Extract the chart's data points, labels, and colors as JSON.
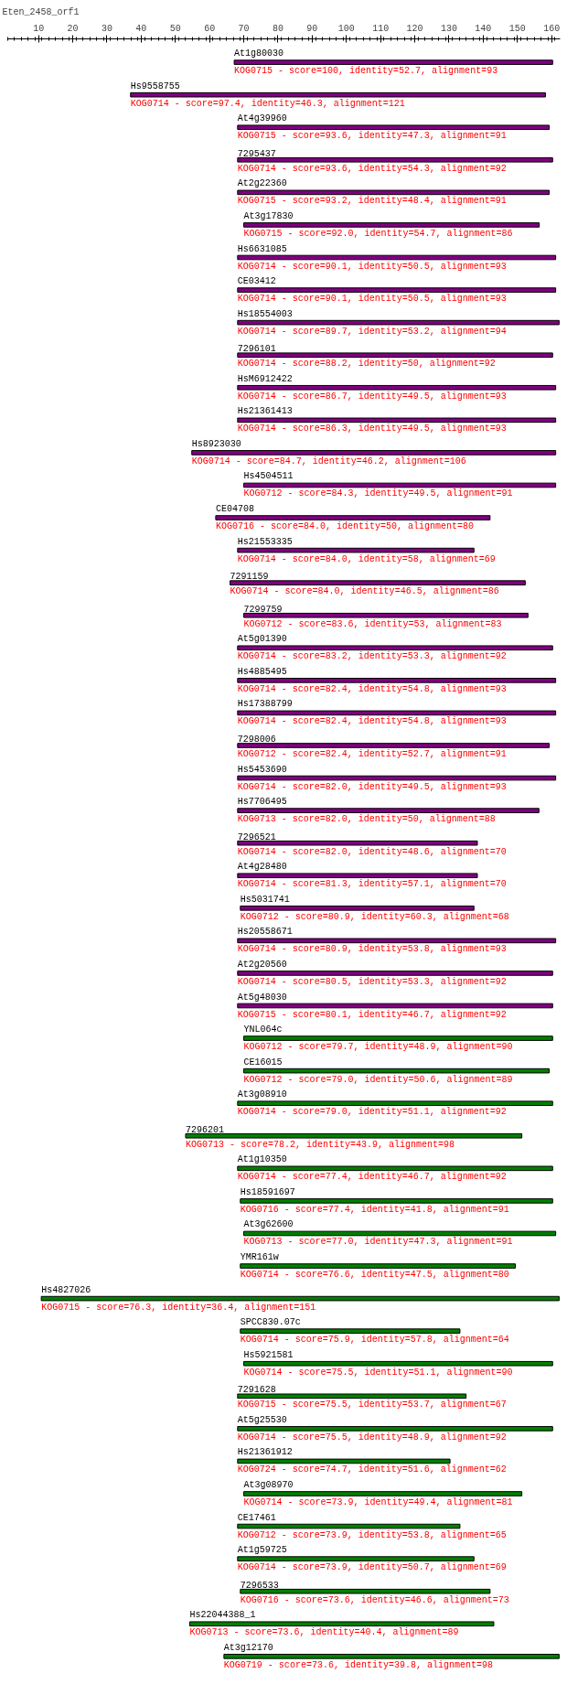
{
  "chart_data": {
    "type": "bar",
    "orientation": "horizontal",
    "title": "Eten_2458_orf1",
    "xlim": [
      1,
      162.5
    ],
    "xticks": [
      10,
      20,
      30,
      40,
      50,
      60,
      70,
      80,
      90,
      100,
      110,
      120,
      130,
      140,
      150,
      160
    ],
    "grid": false,
    "tick_labels": "x",
    "categories": [
      "At1g80030",
      "Hs9558755",
      "At4g39960",
      "7295437",
      "At2g22360",
      "At3g17830",
      "Hs6631085",
      "CE03412",
      "Hs18554003",
      "7296101",
      "HsM6912422",
      "Hs21361413",
      "Hs8923030",
      "Hs4504511",
      "CE04708",
      "Hs21553335",
      "7291159",
      "7299759",
      "At5g01390",
      "Hs4885495",
      "Hs17388799",
      "7298006",
      "Hs5453690",
      "Hs7706495",
      "7296521",
      "At4g28480",
      "Hs5031741",
      "Hs20558671",
      "At2g20560",
      "At5g48030",
      "YNL064c",
      "CE16015",
      "At3g08910",
      "7296201",
      "At1g10350",
      "Hs18591697",
      "At3g62600",
      "YMR161w",
      "Hs4827026",
      "SPCC830.07c",
      "Hs5921581",
      "7291628",
      "At5g25530",
      "Hs21361912",
      "At3g08970",
      "CE17461",
      "At1g59725",
      "7296533",
      "Hs22044388_1",
      "At3g12170"
    ],
    "base": [
      67.2,
      36.9,
      68.2,
      68.2,
      68.2,
      70.0,
      68.2,
      68.2,
      68.2,
      68.2,
      68.2,
      68.2,
      54.8,
      70.0,
      61.8,
      68.2,
      66.0,
      70.0,
      68.2,
      68.2,
      68.2,
      68.2,
      68.2,
      68.2,
      68.2,
      68.2,
      69.0,
      68.2,
      68.2,
      68.2,
      70.0,
      70.0,
      68.2,
      53.0,
      68.2,
      69.0,
      70.0,
      69.0,
      10.8,
      69.0,
      70.0,
      68.2,
      68.2,
      68.2,
      70.0,
      68.2,
      68.2,
      69.0,
      54.2,
      64.2
    ],
    "values": [
      93.1,
      121.3,
      91.1,
      92.1,
      91.1,
      86.4,
      93.0,
      93.0,
      94.0,
      92.1,
      93.0,
      93.0,
      106.4,
      91.2,
      80.2,
      69.1,
      86.3,
      83.1,
      92.1,
      93.0,
      93.0,
      91.1,
      93.0,
      88.1,
      70.1,
      70.1,
      68.3,
      93.0,
      92.1,
      92.1,
      90.3,
      89.3,
      92.1,
      98.3,
      92.1,
      91.3,
      91.2,
      80.4,
      151.4,
      64.2,
      90.3,
      66.8,
      92.1,
      62.1,
      81.3,
      65.0,
      69.1,
      73.0,
      88.9,
      98.0
    ],
    "colors": [
      "#800080",
      "#800080",
      "#800080",
      "#800080",
      "#800080",
      "#800080",
      "#800080",
      "#800080",
      "#800080",
      "#800080",
      "#800080",
      "#800080",
      "#800080",
      "#800080",
      "#800080",
      "#800080",
      "#800080",
      "#800080",
      "#800080",
      "#800080",
      "#800080",
      "#800080",
      "#800080",
      "#800080",
      "#800080",
      "#800080",
      "#800080",
      "#800080",
      "#800080",
      "#800080",
      "#008000",
      "#008000",
      "#008000",
      "#008000",
      "#008000",
      "#008000",
      "#008000",
      "#008000",
      "#008000",
      "#008000",
      "#008000",
      "#008000",
      "#008000",
      "#008000",
      "#008000",
      "#008000",
      "#008000",
      "#008000",
      "#008000",
      "#008000"
    ],
    "value_labels": [
      "KOG0715 - score=100, identity=52.7, alignment=93",
      "KOG0714 - score=97.4, identity=46.3, alignment=121",
      "KOG0715 - score=93.6, identity=47.3, alignment=91",
      "KOG0714 - score=93.6, identity=54.3, alignment=92",
      "KOG0715 - score=93.2, identity=48.4, alignment=91",
      "KOG0715 - score=92.0, identity=54.7, alignment=86",
      "KOG0714 - score=90.1, identity=50.5, alignment=93",
      "KOG0714 - score=90.1, identity=50.5, alignment=93",
      "KOG0714 - score=89.7, identity=53.2, alignment=94",
      "KOG0714 - score=88.2, identity=50, alignment=92",
      "KOG0714 - score=86.7, identity=49.5, alignment=93",
      "KOG0714 - score=86.3, identity=49.5, alignment=93",
      "KOG0714 - score=84.7, identity=46.2, alignment=106",
      "KOG0712 - score=84.3, identity=49.5, alignment=91",
      "KOG0716 - score=84.0, identity=50, alignment=80",
      "KOG0714 - score=84.0, identity=58, alignment=69",
      "KOG0714 - score=84.0, identity=46.5, alignment=86",
      "KOG0712 - score=83.6, identity=53, alignment=83",
      "KOG0714 - score=83.2, identity=53.3, alignment=92",
      "KOG0714 - score=82.4, identity=54.8, alignment=93",
      "KOG0714 - score=82.4, identity=54.8, alignment=93",
      "KOG0712 - score=82.4, identity=52.7, alignment=91",
      "KOG0714 - score=82.0, identity=49.5, alignment=93",
      "KOG0713 - score=82.0, identity=50, alignment=88",
      "KOG0714 - score=82.0, identity=48.6, alignment=70",
      "KOG0714 - score=81.3, identity=57.1, alignment=70",
      "KOG0712 - score=80.9, identity=60.3, alignment=68",
      "KOG0714 - score=80.9, identity=53.8, alignment=93",
      "KOG0714 - score=80.5, identity=53.3, alignment=92",
      "KOG0715 - score=80.1, identity=46.7, alignment=92",
      "KOG0712 - score=79.7, identity=48.9, alignment=90",
      "KOG0712 - score=79.0, identity=50.6, alignment=89",
      "KOG0714 - score=79.0, identity=51.1, alignment=92",
      "KOG0713 - score=78.2, identity=43.9, alignment=98",
      "KOG0714 - score=77.4, identity=46.7, alignment=92",
      "KOG0716 - score=77.4, identity=41.8, alignment=91",
      "KOG0713 - score=77.0, identity=47.3, alignment=91",
      "KOG0714 - score=76.6, identity=47.5, alignment=80",
      "KOG0715 - score=76.3, identity=36.4, alignment=151",
      "KOG0714 - score=75.9, identity=57.8, alignment=64",
      "KOG0714 - score=75.5, identity=51.1, alignment=90",
      "KOG0715 - score=75.5, identity=53.7, alignment=67",
      "KOG0714 - score=75.5, identity=48.9, alignment=92",
      "KOG0724 - score=74.7, identity=51.6, alignment=62",
      "KOG0714 - score=73.9, identity=49.4, alignment=81",
      "KOG0712 - score=73.9, identity=53.8, alignment=65",
      "KOG0714 - score=73.9, identity=50.7, alignment=69",
      "KOG0716 - score=73.6, identity=46.6, alignment=73",
      "KOG0713 - score=73.6, identity=40.4, alignment=89",
      "KOG0719 - score=73.6, identity=39.8, alignment=98"
    ]
  }
}
